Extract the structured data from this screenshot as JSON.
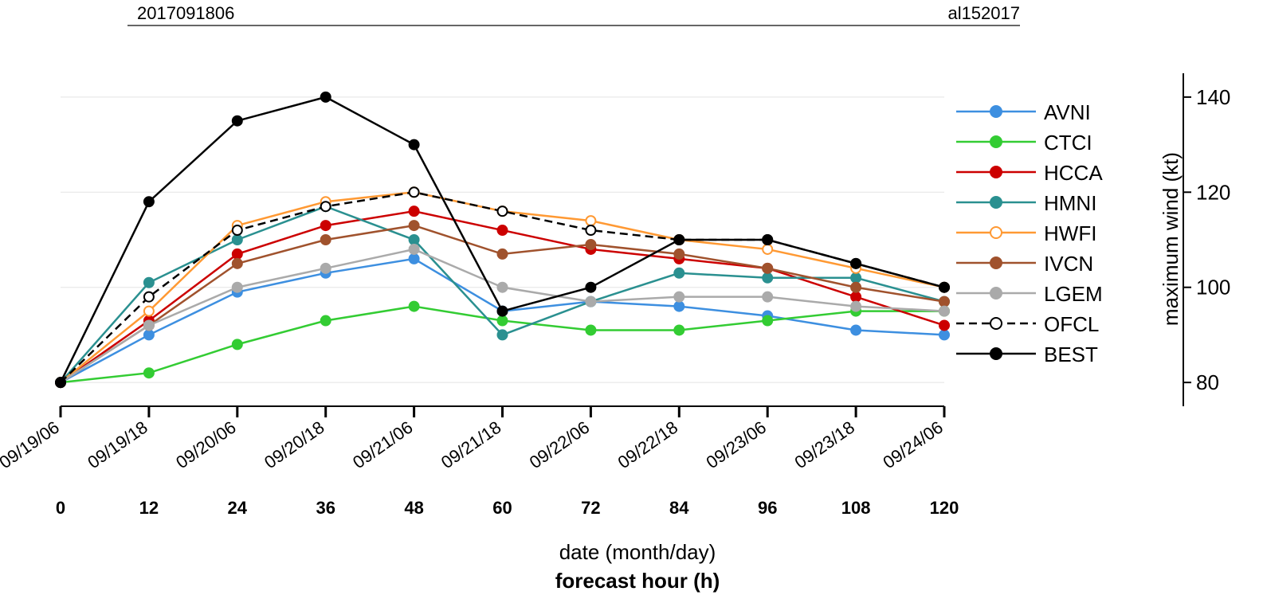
{
  "chart_data": {
    "type": "line",
    "title_left": "2017091806",
    "title_right": "al152017",
    "xlabel_top": "date (month/day)",
    "xlabel": "forecast hour (h)",
    "ylabel": "maximum wind (kt)",
    "x": [
      0,
      12,
      24,
      36,
      48,
      60,
      72,
      84,
      96,
      108,
      120
    ],
    "date_labels": [
      "09/19/06",
      "09/19/18",
      "09/20/06",
      "09/20/18",
      "09/21/06",
      "09/21/18",
      "09/22/06",
      "09/22/18",
      "09/23/06",
      "09/23/18",
      "09/24/06"
    ],
    "xlim": [
      0,
      120
    ],
    "xticks": [
      0,
      12,
      24,
      36,
      48,
      60,
      72,
      84,
      96,
      108,
      120
    ],
    "ylim": [
      75,
      145
    ],
    "yticks": [
      80,
      100,
      120,
      140
    ],
    "legend": "right",
    "series": [
      {
        "name": "AVNI",
        "color": "#3d8fe0",
        "values": [
          80,
          90,
          99,
          103,
          106,
          95,
          97,
          96,
          94,
          91,
          90
        ]
      },
      {
        "name": "CTCI",
        "color": "#33cc33",
        "values": [
          80,
          82,
          88,
          93,
          96,
          93,
          91,
          91,
          93,
          95,
          95
        ]
      },
      {
        "name": "HCCA",
        "color": "#cc0000",
        "values": [
          80,
          93,
          107,
          113,
          116,
          112,
          108,
          106,
          104,
          98,
          92
        ]
      },
      {
        "name": "HMNI",
        "color": "#2a9090",
        "values": [
          80,
          101,
          110,
          117,
          110,
          90,
          97,
          103,
          102,
          102,
          97
        ]
      },
      {
        "name": "HWFI",
        "color": "#ff9933",
        "open": true,
        "values": [
          80,
          95,
          113,
          118,
          120,
          116,
          114,
          110,
          108,
          104,
          100
        ]
      },
      {
        "name": "IVCN",
        "color": "#a0522d",
        "values": [
          80,
          92,
          105,
          110,
          113,
          107,
          109,
          107,
          104,
          100,
          97
        ]
      },
      {
        "name": "LGEM",
        "color": "#aaaaaa",
        "values": [
          80,
          92,
          100,
          104,
          108,
          100,
          97,
          98,
          98,
          96,
          95
        ]
      },
      {
        "name": "OFCL",
        "color": "#000000",
        "open": true,
        "dashed": true,
        "values": [
          80,
          98,
          112,
          117,
          120,
          116,
          112,
          110,
          110,
          105,
          100
        ]
      },
      {
        "name": "BEST",
        "color": "#000000",
        "values": [
          80,
          118,
          135,
          140,
          130,
          95,
          100,
          110,
          110,
          105,
          100
        ]
      }
    ]
  }
}
